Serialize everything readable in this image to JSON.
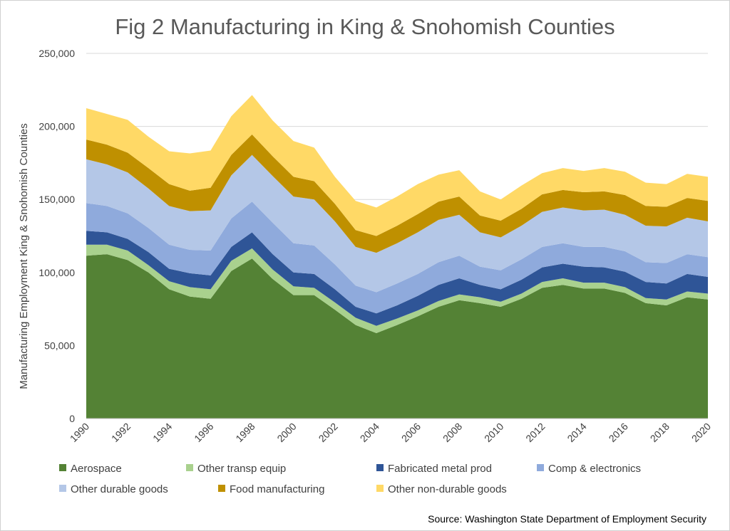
{
  "chart_data": {
    "type": "area",
    "stacked": true,
    "title": "Fig 2 Manufacturing in King & Snohomish Counties",
    "ylabel": "Manufacturing Employment King & Snohomish Counties",
    "xlabel": "",
    "source": "Source: Washington State Department of Employment Security",
    "ylim": [
      0,
      250000
    ],
    "y_ticks": [
      0,
      50000,
      100000,
      150000,
      200000,
      250000
    ],
    "y_tick_labels": [
      "0",
      "50,000",
      "100,000",
      "150,000",
      "200,000",
      "250,000"
    ],
    "x": [
      1990,
      1991,
      1992,
      1993,
      1994,
      1995,
      1996,
      1997,
      1998,
      1999,
      2000,
      2001,
      2002,
      2003,
      2004,
      2005,
      2006,
      2007,
      2008,
      2009,
      2010,
      2011,
      2012,
      2013,
      2014,
      2015,
      2016,
      2017,
      2018,
      2019,
      2020
    ],
    "x_tick_labels": [
      "1990",
      "1992",
      "1994",
      "1996",
      "1998",
      "2000",
      "2002",
      "2004",
      "2006",
      "2008",
      "2010",
      "2012",
      "2014",
      "2016",
      "2018",
      "2020"
    ],
    "grid": "horizontal",
    "legend_position": "bottom",
    "series": [
      {
        "name": "Aerospace",
        "color": "#548235",
        "values": [
          111500,
          112500,
          108500,
          100000,
          88500,
          83500,
          82000,
          101000,
          109500,
          95500,
          84500,
          84500,
          74500,
          64000,
          58500,
          64000,
          70000,
          76500,
          81000,
          79000,
          76500,
          82000,
          89500,
          91500,
          89000,
          89000,
          86000,
          79000,
          77500,
          83000,
          81500
        ]
      },
      {
        "name": "Other transp equip",
        "color": "#a9d18e",
        "values": [
          7500,
          6500,
          6500,
          5000,
          5500,
          6500,
          6500,
          7000,
          7000,
          6500,
          6000,
          5000,
          5000,
          5000,
          5000,
          4500,
          4000,
          4000,
          4000,
          4000,
          3500,
          3500,
          4000,
          4500,
          4000,
          4000,
          4000,
          3500,
          4000,
          4000,
          4000
        ]
      },
      {
        "name": "Fabricated metal prod",
        "color": "#2f5597",
        "values": [
          9500,
          8500,
          8000,
          9000,
          8500,
          9500,
          9500,
          9500,
          11000,
          10500,
          9500,
          9500,
          9000,
          7500,
          8500,
          9000,
          10000,
          11000,
          11000,
          8500,
          8500,
          9500,
          10000,
          10000,
          11000,
          10500,
          10500,
          11000,
          11000,
          12000,
          11500
        ]
      },
      {
        "name": "Comp & electronics",
        "color": "#8faadc",
        "values": [
          19000,
          18000,
          17500,
          16500,
          16500,
          16000,
          17000,
          19500,
          21000,
          21500,
          20000,
          19500,
          17000,
          14500,
          14500,
          15000,
          15000,
          15500,
          15500,
          12500,
          13000,
          14000,
          14000,
          14000,
          13500,
          14000,
          14000,
          13500,
          14000,
          13500,
          13500
        ]
      },
      {
        "name": "Other durable goods",
        "color": "#b4c7e7",
        "values": [
          30000,
          28500,
          28000,
          27000,
          26500,
          26500,
          27500,
          29500,
          32000,
          32000,
          32000,
          31500,
          29500,
          26500,
          27000,
          27500,
          28500,
          29000,
          28000,
          23500,
          22500,
          23000,
          24000,
          24500,
          25000,
          25500,
          25000,
          25000,
          25000,
          25000,
          24500
        ]
      },
      {
        "name": "Food manufacturing",
        "color": "#bf9000",
        "values": [
          13500,
          13500,
          13500,
          14000,
          15000,
          14000,
          15500,
          14000,
          14000,
          13500,
          13500,
          12500,
          12000,
          11500,
          11500,
          12000,
          12500,
          12500,
          12500,
          11500,
          11500,
          11500,
          12000,
          12000,
          12500,
          12500,
          13500,
          13500,
          13500,
          13500,
          14000
        ]
      },
      {
        "name": "Other non-durable goods",
        "color": "#ffd966",
        "values": [
          21500,
          21000,
          22500,
          21500,
          22500,
          25500,
          25500,
          26500,
          27000,
          24500,
          24500,
          23000,
          18500,
          20000,
          19500,
          20000,
          20500,
          18500,
          18000,
          16500,
          14500,
          16000,
          14500,
          15000,
          14500,
          16000,
          16000,
          16000,
          15500,
          16500,
          16500
        ]
      }
    ]
  }
}
